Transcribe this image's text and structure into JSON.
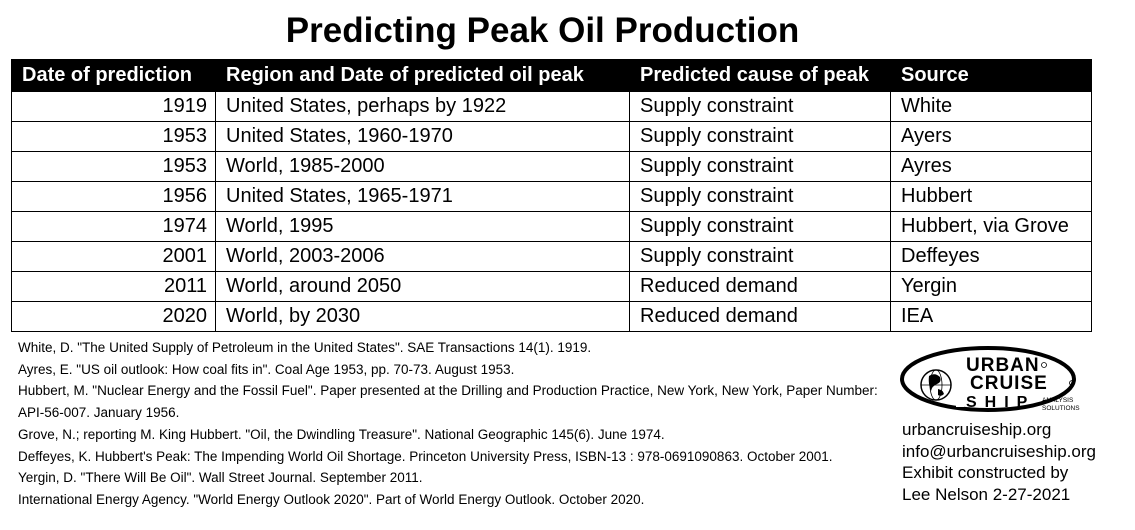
{
  "title": "Predicting Peak Oil Production",
  "table": {
    "headers": [
      "Date of prediction",
      "Region and Date of predicted oil peak",
      "Predicted cause of peak",
      "Source"
    ],
    "rows": [
      [
        "1919",
        "United States, perhaps by 1922",
        "Supply constraint",
        "White"
      ],
      [
        "1953",
        "United States, 1960-1970",
        "Supply constraint",
        "Ayers"
      ],
      [
        "1953",
        "World, 1985-2000",
        "Supply constraint",
        "Ayres"
      ],
      [
        "1956",
        "United States, 1965-1971",
        "Supply constraint",
        "Hubbert"
      ],
      [
        "1974",
        "World, 1995",
        "Supply constraint",
        "Hubbert, via Grove"
      ],
      [
        "2001",
        "World, 2003-2006",
        "Supply constraint",
        "Deffeyes"
      ],
      [
        "2011",
        "World, around 2050",
        "Reduced demand",
        "Yergin"
      ],
      [
        "2020",
        "World, by 2030",
        "Reduced demand",
        "IEA"
      ]
    ]
  },
  "references": [
    "White, D. \"The United Supply of Petroleum in the United States\". SAE Transactions 14(1). 1919.",
    "Ayres, E. \"US oil outlook: How coal fits in\". Coal Age 1953, pp. 70-73. August 1953.",
    "Hubbert, M. \"Nuclear Energy and the Fossil Fuel\". Paper presented at the Drilling and Production Practice, New York, New York, Paper Number: API-56-007. January 1956.",
    "Grove, N.; reporting M. King Hubbert. \"Oil, the Dwindling Treasure\". National Geographic 145(6). June 1974.",
    "Deffeyes, K. Hubbert's Peak: The Impending World Oil Shortage. Princeton University Press, ISBN-13 : 978-0691090863. October 2001.",
    "Yergin, D. \"There Will Be Oil\". Wall Street Journal. September 2011.",
    "International Energy Agency. \"World Energy Outlook 2020\". Part of World Energy Outlook. October 2020."
  ],
  "logo": {
    "line1": "URBAN",
    "line2": "CRUISE",
    "line3": "SHIP",
    "tagline1": "ANALYSIS",
    "tagline2": "SOLUTIONS"
  },
  "contact": {
    "website": "urbancruiseship.org",
    "email": "info@urbancruiseship.org",
    "credit_line1": "Exhibit constructed by",
    "credit_line2": "Lee Nelson 2-27-2021"
  }
}
